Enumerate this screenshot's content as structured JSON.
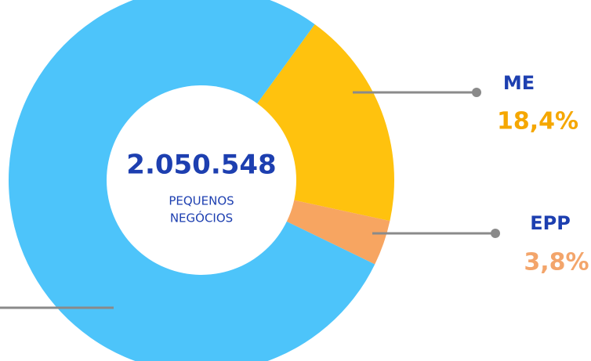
{
  "chart_data": {
    "type": "donut",
    "center_value": "2.050.548",
    "center_label": [
      "PEQUENOS",
      "NEGÓCIOS"
    ],
    "categories": [
      "ME",
      "EPP",
      null
    ],
    "values": [
      18.4,
      3.8,
      77.8
    ],
    "value_labels": [
      "18,4%",
      "3,8%",
      null
    ],
    "colors": [
      "#FFC20E",
      "#F7A561",
      "#4DC4FA"
    ]
  }
}
